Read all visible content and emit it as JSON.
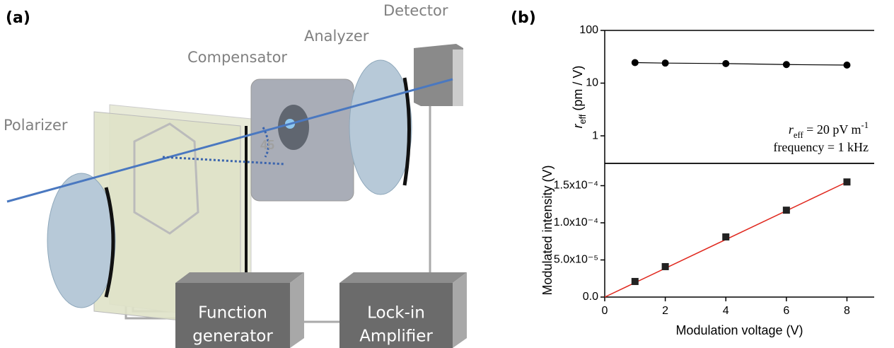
{
  "panels": {
    "a": "(a)",
    "b": "(b)"
  },
  "diagram": {
    "polarizer": "Polarizer",
    "compensator": "Compensator",
    "analyzer": "Analyzer",
    "detector": "Detector",
    "angle": "45",
    "function_generator": [
      "Function",
      "generator"
    ],
    "lock_in": [
      "Lock-in",
      "Amplifier"
    ]
  },
  "chart_data": [
    {
      "type": "line",
      "log_y": true,
      "xlim": [
        0,
        8.9
      ],
      "ylim": [
        0.3,
        100
      ],
      "yticks": [
        1,
        10,
        100
      ],
      "ylabel": {
        "symbol": "r",
        "subscript": "eff",
        "text": " (pm / V)"
      },
      "annotations": [
        {
          "symbol": "r",
          "subscript": "eff",
          "text": " = 20 pV m",
          "superscript": "-1"
        },
        {
          "text": "frequency = 1 kHz"
        }
      ],
      "x": [
        1,
        2,
        4,
        6,
        8
      ],
      "series": [
        {
          "color": "#000000",
          "values": [
            24.5,
            24,
            23.5,
            22.5,
            22
          ]
        }
      ]
    },
    {
      "type": "scatter",
      "xlim": [
        0,
        8.9
      ],
      "ylim": [
        0,
        0.00018
      ],
      "xticks": [
        0,
        2,
        4,
        6,
        8
      ],
      "yticks": [
        {
          "value": 0,
          "label": "0.0"
        },
        {
          "value": 5e-05,
          "label": "5.0x10⁻⁵"
        },
        {
          "value": 0.0001,
          "label": "1.0x10⁻⁴"
        },
        {
          "value": 0.00015,
          "label": "1.5x10⁻⁴"
        }
      ],
      "xlabel": "Modulation voltage (V)",
      "ylabel": "Modulated intensity (V)",
      "x": [
        1,
        2,
        4,
        6,
        8
      ],
      "series": [
        {
          "color": "#222222",
          "values": [
            2.1e-05,
            4.1e-05,
            8.1e-05,
            0.000117,
            0.000155
          ]
        }
      ],
      "fit": {
        "color": "#e0281e",
        "x": [
          0,
          8
        ],
        "values": [
          0,
          0.000155
        ]
      }
    }
  ]
}
